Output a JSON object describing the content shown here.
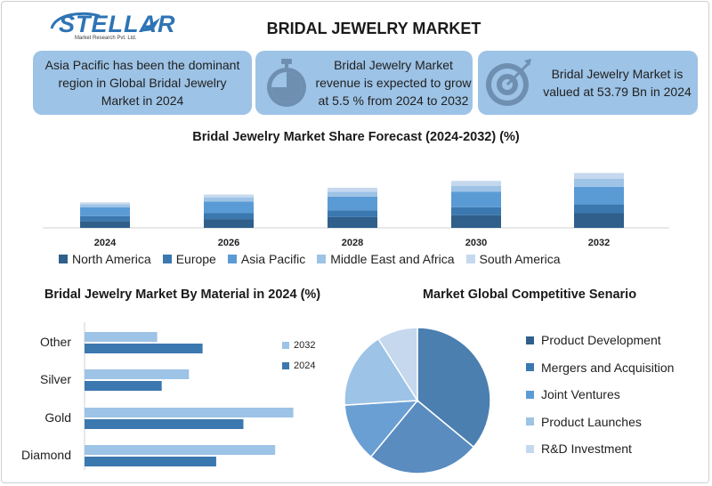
{
  "header": {
    "logo_text": "STELLAR",
    "logo_sub": "Market Research Pvt. Ltd.",
    "title": "BRIDAL JEWELRY MARKET"
  },
  "cards": [
    {
      "text": "Asia Pacific has been the dominant region in Global Bridal Jewelry Market in 2024"
    },
    {
      "text": "Bridal Jewelry Market revenue is expected to grow at 5.5 % from 2024 to 2032",
      "icon": "stopwatch-icon"
    },
    {
      "text": "Bridal Jewelry Market is valued at 53.79 Bn in 2024",
      "icon": "target-icon"
    }
  ],
  "colors": {
    "card_bg": "#9dc3e6",
    "north_america": "#2f5f8a",
    "europe": "#3b78b0",
    "asia_pacific": "#5b9bd5",
    "middle_east_africa": "#9dc3e6",
    "south_america": "#c5d8ee"
  },
  "chart_data": [
    {
      "type": "bar",
      "stacked": true,
      "title": "Bridal Jewelry Market Share Forecast (2024-2032) (%)",
      "categories": [
        "2024",
        "2026",
        "2028",
        "2030",
        "2032"
      ],
      "series": [
        {
          "name": "North America",
          "values": [
            7,
            9,
            11,
            13,
            15
          ]
        },
        {
          "name": "Europe",
          "values": [
            5,
            6,
            7,
            8,
            9
          ]
        },
        {
          "name": "Asia Pacific",
          "values": [
            9,
            12,
            14,
            16,
            18
          ]
        },
        {
          "name": "Middle East and Africa",
          "values": [
            3,
            4,
            5,
            6,
            8
          ]
        },
        {
          "name": "South America",
          "values": [
            2,
            3,
            4,
            5,
            6
          ]
        }
      ],
      "legend": "bottom"
    },
    {
      "type": "bar",
      "orientation": "horizontal",
      "title": "Bridal Jewelry Market By Material in 2024 (%)",
      "categories": [
        "Other",
        "Silver",
        "Gold",
        "Diamond"
      ],
      "series": [
        {
          "name": "2032",
          "values": [
            16,
            23,
            46,
            42
          ]
        },
        {
          "name": "2024",
          "values": [
            26,
            17,
            35,
            29
          ]
        }
      ],
      "legend": "right"
    },
    {
      "type": "pie",
      "title": "Market Global Competitive Senario",
      "labels": [
        "Product Development",
        "Mergers and Acquisition",
        "Joint Ventures",
        "Product Launches",
        "R&D Investment"
      ],
      "values": [
        36,
        25,
        13,
        17,
        9
      ],
      "legend": "right"
    }
  ]
}
